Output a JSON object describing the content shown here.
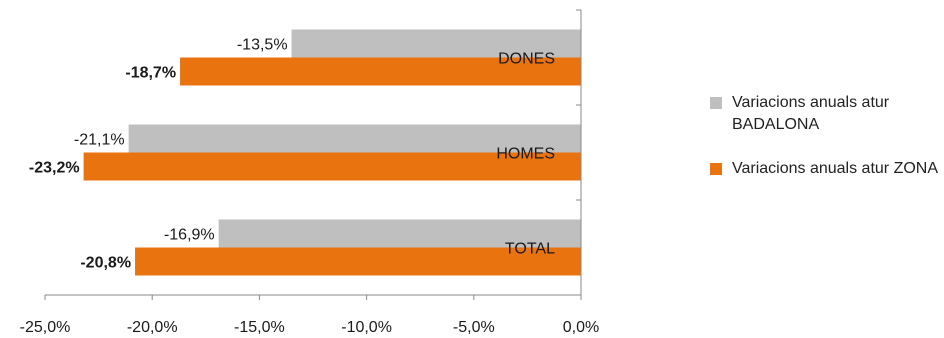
{
  "chart_data": {
    "type": "bar",
    "orientation": "horizontal",
    "categories": [
      "DONES",
      "HOMES",
      "TOTAL"
    ],
    "series": [
      {
        "name": "Variacions anuals atur BADALONA",
        "values": [
          -13.5,
          -21.1,
          -16.9
        ],
        "labels": [
          "-13,5%",
          "-21,1%",
          "-16,9%"
        ],
        "color": "#bfbfbf",
        "label_bold": false
      },
      {
        "name": "Variacions anuals atur ZONA",
        "values": [
          -18.7,
          -23.2,
          -20.8
        ],
        "labels": [
          "-18,7%",
          "-23,2%",
          "-20,8%"
        ],
        "color": "#e8730f",
        "label_bold": true
      }
    ],
    "xlim": [
      -25,
      0
    ],
    "xticks": [
      -25,
      -20,
      -15,
      -10,
      -5,
      0
    ],
    "xtick_labels": [
      "-25,0%",
      "-20,0%",
      "-15,0%",
      "-10,0%",
      "-5,0%",
      "0,0%"
    ],
    "category_labels_position": "inside-right",
    "grid": false,
    "legend_position": "right",
    "title": "",
    "xlabel": "",
    "ylabel": ""
  }
}
